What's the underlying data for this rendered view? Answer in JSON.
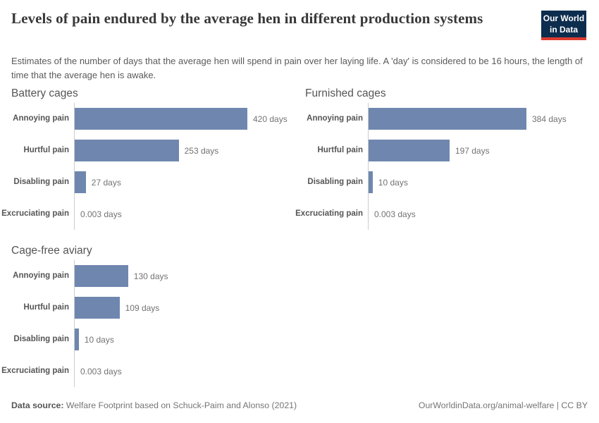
{
  "header": {
    "title": "Levels of pain endured by the average hen in different production systems",
    "subtitle": "Estimates of the number of days that the average hen will spend in pain over her laying life. A 'day' is considered to be 16 hours, the length of time that the average hen is awake.",
    "logo": {
      "line1": "Our World",
      "line2": "in Data"
    }
  },
  "footer": {
    "source_label": "Data source:",
    "source_text": " Welfare Footprint based on Schuck-Paim and Alonso (2021)",
    "right_text": "OurWorldinData.org/animal-welfare | CC BY"
  },
  "colors": {
    "bar": "#6f87ae",
    "axis": "#cccccc",
    "logo_bg": "#0d2d4e",
    "logo_stripe": "#dc3b2f"
  },
  "chart_data": {
    "type": "bar",
    "orientation": "horizontal",
    "unit": "days",
    "xlim": [
      0,
      420
    ],
    "grid": false,
    "legend": "none",
    "value_label_position": "right-of-bar",
    "categories": [
      "Annoying pain",
      "Hurtful pain",
      "Disabling pain",
      "Excruciating pain"
    ],
    "panels": [
      {
        "title": "Battery cages",
        "values": [
          420,
          253,
          27,
          0.003
        ],
        "labels": [
          "420 days",
          "253 days",
          "27 days",
          "0.003 days"
        ]
      },
      {
        "title": "Furnished cages",
        "values": [
          384,
          197,
          10,
          0.003
        ],
        "labels": [
          "384 days",
          "197 days",
          "10 days",
          "0.003 days"
        ]
      },
      {
        "title": "Cage-free aviary",
        "values": [
          130,
          109,
          10,
          0.003
        ],
        "labels": [
          "130 days",
          "109 days",
          "10 days",
          "0.003 days"
        ]
      }
    ]
  }
}
